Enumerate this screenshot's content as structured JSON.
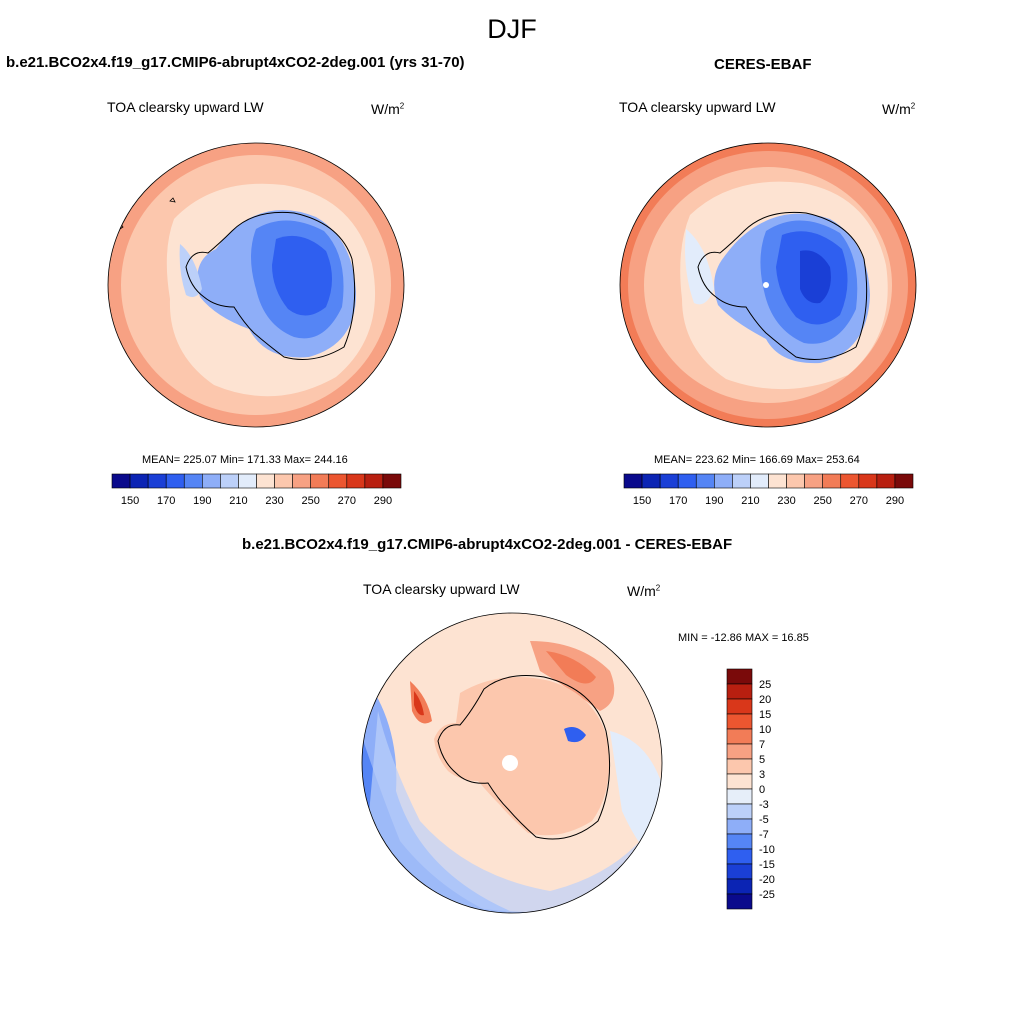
{
  "figure": {
    "title": "DJF"
  },
  "panels": {
    "model": {
      "title": "b.e21.BCO2x4.f19_g17.CMIP6-abrupt4xCO2-2deg.001 (yrs 31-70)",
      "left_label": "TOA clearsky upward LW",
      "units_base": "W/m",
      "units_exp": "2",
      "stats": "MEAN= 225.07  Min= 171.33  Max= 244.16"
    },
    "obs": {
      "title": "CERES-EBAF",
      "left_label": "TOA clearsky upward LW",
      "units_base": "W/m",
      "units_exp": "2",
      "stats": "MEAN= 223.62  Min= 166.69  Max= 253.64"
    },
    "diff": {
      "title": "b.e21.BCO2x4.f19_g17.CMIP6-abrupt4xCO2-2deg.001 - CERES-EBAF",
      "left_label": "TOA clearsky upward LW",
      "units_base": "W/m",
      "units_exp": "2",
      "stats": "MIN = -12.86 MAX =  16.85"
    }
  },
  "colorbars": {
    "abs": {
      "colors": [
        "#0a0a8c",
        "#0b24b4",
        "#1a3fd6",
        "#2f5ff0",
        "#5585f5",
        "#8eaef8",
        "#bcd0f9",
        "#e2ecfb",
        "#fde3d2",
        "#fcc7ad",
        "#f7a183",
        "#f27c57",
        "#ec5630",
        "#d9371a",
        "#b81f10",
        "#7a0a0a"
      ],
      "labels": [
        "150",
        "170",
        "190",
        "210",
        "230",
        "250",
        "270",
        "290"
      ]
    },
    "diff": {
      "colors": [
        "#0a0a8c",
        "#0b24b4",
        "#1a3fd6",
        "#2f5ff0",
        "#5585f5",
        "#8eaef8",
        "#bcd0f9",
        "#e6eef9",
        "#fde3d2",
        "#fcc7ad",
        "#f7a183",
        "#f27c57",
        "#ec5630",
        "#d9371a",
        "#b81f10",
        "#7a0a0a"
      ],
      "labels": [
        "25",
        "20",
        "15",
        "10",
        "7",
        "5",
        "3",
        "0",
        "-3",
        "-5",
        "-7",
        "-10",
        "-15",
        "-20",
        "-25"
      ]
    }
  }
}
